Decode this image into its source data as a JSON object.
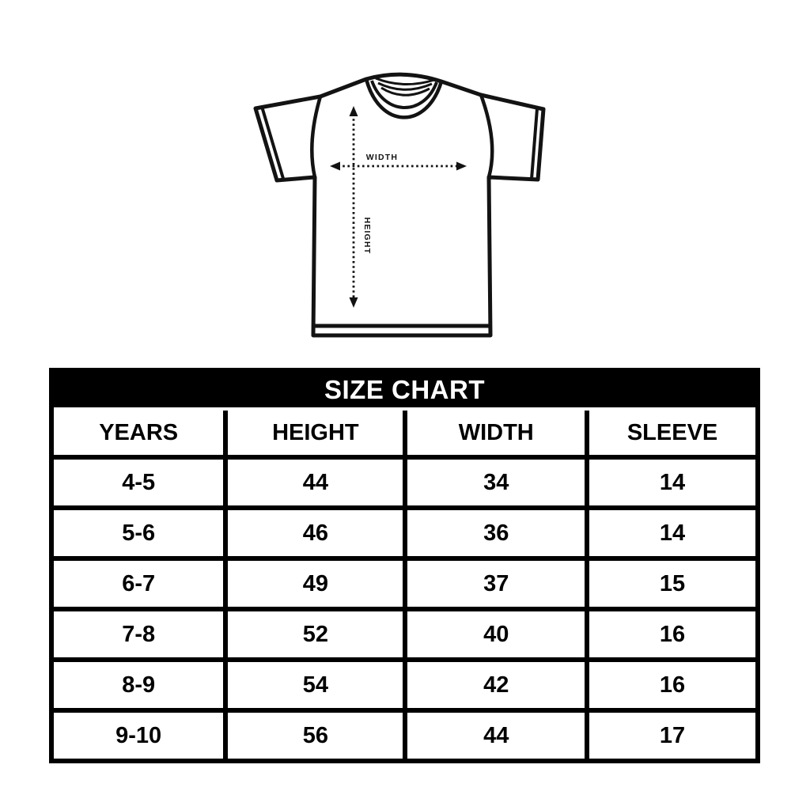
{
  "diagram": {
    "width_label": "WIDTH",
    "height_label": "HEIGHT"
  },
  "chart_data": {
    "type": "table",
    "title": "SIZE CHART",
    "columns": [
      "YEARS",
      "HEIGHT",
      "WIDTH",
      "SLEEVE"
    ],
    "rows": [
      [
        "4-5",
        "44",
        "34",
        "14"
      ],
      [
        "5-6",
        "46",
        "36",
        "14"
      ],
      [
        "6-7",
        "49",
        "37",
        "15"
      ],
      [
        "7-8",
        "52",
        "40",
        "16"
      ],
      [
        "8-9",
        "54",
        "42",
        "16"
      ],
      [
        "9-10",
        "56",
        "44",
        "17"
      ]
    ]
  },
  "colors": {
    "ink": "#131313",
    "banner_bg": "#000000",
    "banner_text": "#ffffff",
    "background": "#ffffff"
  }
}
